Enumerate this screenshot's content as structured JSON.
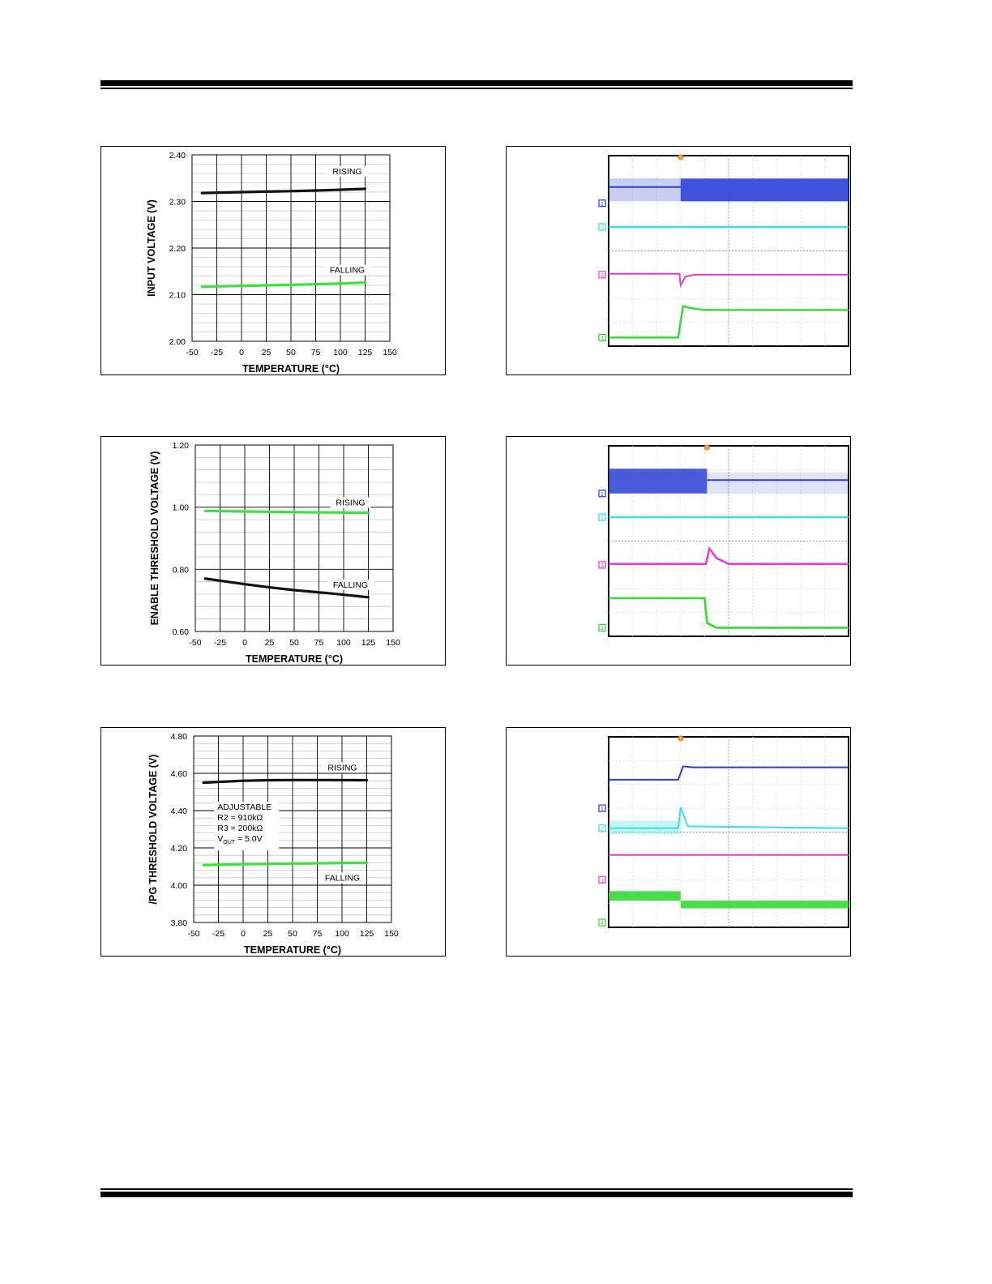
{
  "colors": {
    "rising_black": "#111111",
    "falling_green": "#3ee23e",
    "ch1": "#2a3fd6",
    "ch2": "#35e0e6",
    "ch3": "#e43fd3",
    "ch4": "#35d935",
    "trigger": "#f08a1e"
  },
  "chart_data": [
    {
      "type": "line",
      "xlabel": "TEMPERATURE (°C)",
      "ylabel": "INPUT VOLTAGE (V)",
      "xlim": [
        -50,
        150
      ],
      "ylim": [
        2.0,
        2.4
      ],
      "xticks": [
        "-50",
        "-25",
        "0",
        "25",
        "50",
        "75",
        "100",
        "125",
        "150"
      ],
      "yticks": [
        "2.00",
        "2.10",
        "2.20",
        "2.30",
        "2.40"
      ],
      "grid": true,
      "series": [
        {
          "name": "RISING",
          "color": "#111111",
          "x": [
            -40,
            0,
            25,
            50,
            85,
            125
          ],
          "y": [
            2.318,
            2.32,
            2.321,
            2.322,
            2.324,
            2.327
          ]
        },
        {
          "name": "FALLING",
          "color": "#3ee23e",
          "x": [
            -40,
            0,
            25,
            50,
            85,
            125
          ],
          "y": [
            2.117,
            2.119,
            2.12,
            2.121,
            2.123,
            2.126
          ]
        }
      ]
    },
    {
      "type": "line",
      "xlabel": "TEMPERATURE (°C)",
      "ylabel": "ENABLE THRESHOLD VOLTAGE (V)",
      "xlim": [
        -50,
        150
      ],
      "ylim": [
        0.6,
        1.2
      ],
      "xticks": [
        "-50",
        "-25",
        "0",
        "25",
        "50",
        "75",
        "100",
        "125",
        "150"
      ],
      "yticks": [
        "0.60",
        "0.80",
        "1.00",
        "1.20"
      ],
      "grid": true,
      "series": [
        {
          "name": "RISING",
          "color": "#3ee23e",
          "x": [
            -40,
            0,
            25,
            50,
            85,
            125
          ],
          "y": [
            0.988,
            0.986,
            0.985,
            0.984,
            0.983,
            0.982
          ]
        },
        {
          "name": "FALLING",
          "color": "#111111",
          "x": [
            -40,
            0,
            25,
            50,
            85,
            125
          ],
          "y": [
            0.77,
            0.752,
            0.742,
            0.733,
            0.723,
            0.71
          ]
        }
      ]
    },
    {
      "type": "line",
      "xlabel": "TEMPERATURE (°C)",
      "ylabel": "/PG THRESHOLD VOLTAGE (V)",
      "xlim": [
        -50,
        150
      ],
      "ylim": [
        3.8,
        4.8
      ],
      "xticks": [
        "-50",
        "-25",
        "0",
        "25",
        "50",
        "75",
        "100",
        "125",
        "150"
      ],
      "yticks": [
        "3.80",
        "4.00",
        "4.20",
        "4.40",
        "4.60",
        "4.80"
      ],
      "grid": true,
      "annotation": {
        "line1": "ADJUSTABLE",
        "line2": "R2 = 910kΩ",
        "line3": "R3 = 200kΩ",
        "line4_prefix": "V",
        "line4_sub": "OUT",
        "line4_suffix": " = 5.0V"
      },
      "series": [
        {
          "name": "RISING",
          "color": "#111111",
          "x": [
            -40,
            0,
            25,
            50,
            85,
            125
          ],
          "y": [
            4.55,
            4.56,
            4.563,
            4.564,
            4.564,
            4.563
          ]
        },
        {
          "name": "FALLING",
          "color": "#3ee23e",
          "x": [
            -40,
            0,
            25,
            50,
            85,
            125
          ],
          "y": [
            4.108,
            4.112,
            4.114,
            4.116,
            4.118,
            4.12
          ]
        }
      ]
    }
  ],
  "scopes": [
    {
      "channel_markers": [
        "1",
        "2",
        "3",
        "4"
      ],
      "trigger_marker": "T"
    },
    {
      "channel_markers": [
        "1",
        "2",
        "3",
        "4"
      ],
      "trigger_marker": "T"
    },
    {
      "channel_markers": [
        "1",
        "2",
        "3",
        "4"
      ],
      "trigger_marker": "T"
    }
  ]
}
